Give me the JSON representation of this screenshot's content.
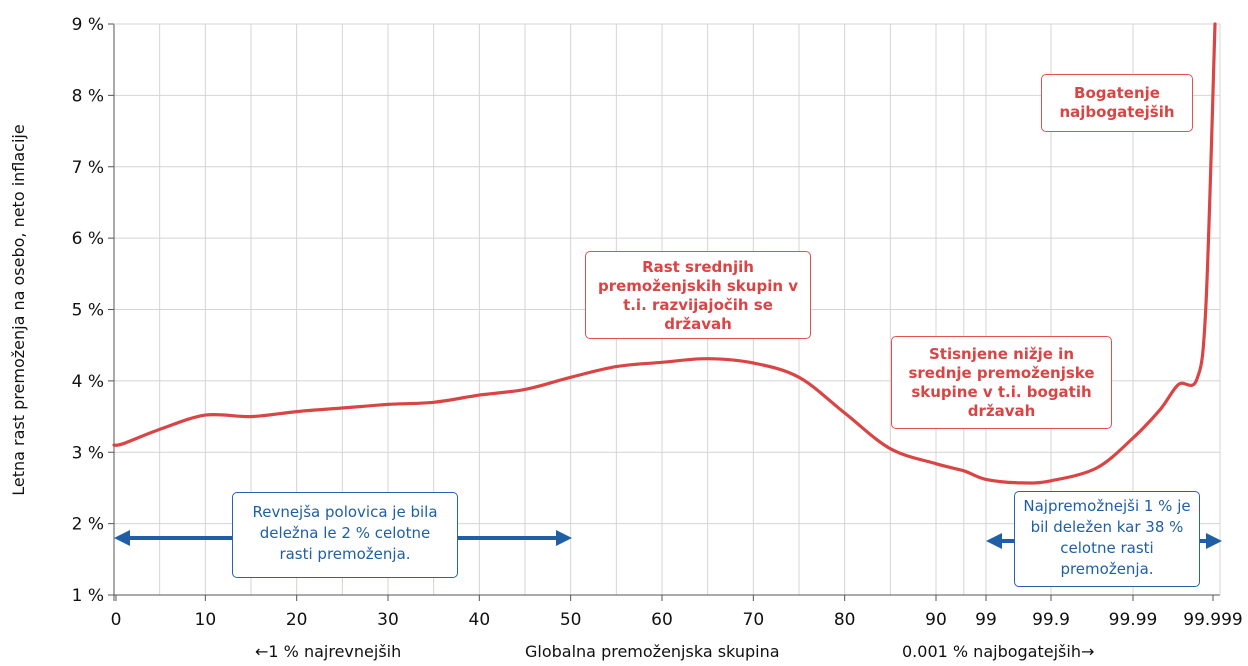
{
  "chart_data": {
    "type": "line",
    "title": "",
    "ylabel": "Letna rast premoženja na osebo, neto inflacije",
    "xlabel": "Globalna premoženjska skupina",
    "ylim": [
      1,
      9
    ],
    "y_ticks": [
      "1 %",
      "2 %",
      "3 %",
      "4 %",
      "5 %",
      "6 %",
      "7 %",
      "8 %",
      "9 %"
    ],
    "x_ticks": [
      "0",
      "10",
      "20",
      "30",
      "40",
      "50",
      "60",
      "70",
      "80",
      "90",
      "99",
      "99.9",
      "99.99",
      "99.999"
    ],
    "x_scale": "linear to 90, then log-like toward 99.999",
    "grid": true,
    "color": "#d94545",
    "series": [
      {
        "x": [
          0,
          1,
          5,
          10,
          15,
          20,
          25,
          30,
          35,
          40,
          45,
          50,
          55,
          60,
          65,
          70,
          75,
          80,
          85,
          90,
          95,
          99,
          99.5,
          99.9,
          99.95,
          99.99,
          99.993,
          99.995,
          99.997,
          99.998,
          99.999
        ],
        "values": [
          3.1,
          3.12,
          3.32,
          3.52,
          3.5,
          3.57,
          3.62,
          3.67,
          3.7,
          3.8,
          3.88,
          4.05,
          4.2,
          4.26,
          4.31,
          4.25,
          4.05,
          3.55,
          3.05,
          2.84,
          2.74,
          2.62,
          2.57,
          2.6,
          2.78,
          3.2,
          3.6,
          3.95,
          4.02,
          5.05,
          9.0
        ]
      }
    ],
    "bottom_labels": {
      "left": "←1 % najrevnejših",
      "center": "Globalna premoženjska skupina",
      "right": "0.001 % najbogatejših→"
    },
    "annotations": {
      "rich": "Bogatenje najbogatejših",
      "middle": "Rast srednjih premoženjskih skupin v t.i. razvijajočih se državah",
      "squeezed": "Stisnjene nižje in srednje premoženjske skupine v t.i. bogatih državah",
      "poor_half": "Revnejša polovica je bila deležna le 2 % celotne rasti premoženja.",
      "top1": "Najpremožnejši 1 % je bil deležen kar 38 % celotne rasti premoženja."
    },
    "arrow_color": "#1f5fa6"
  }
}
